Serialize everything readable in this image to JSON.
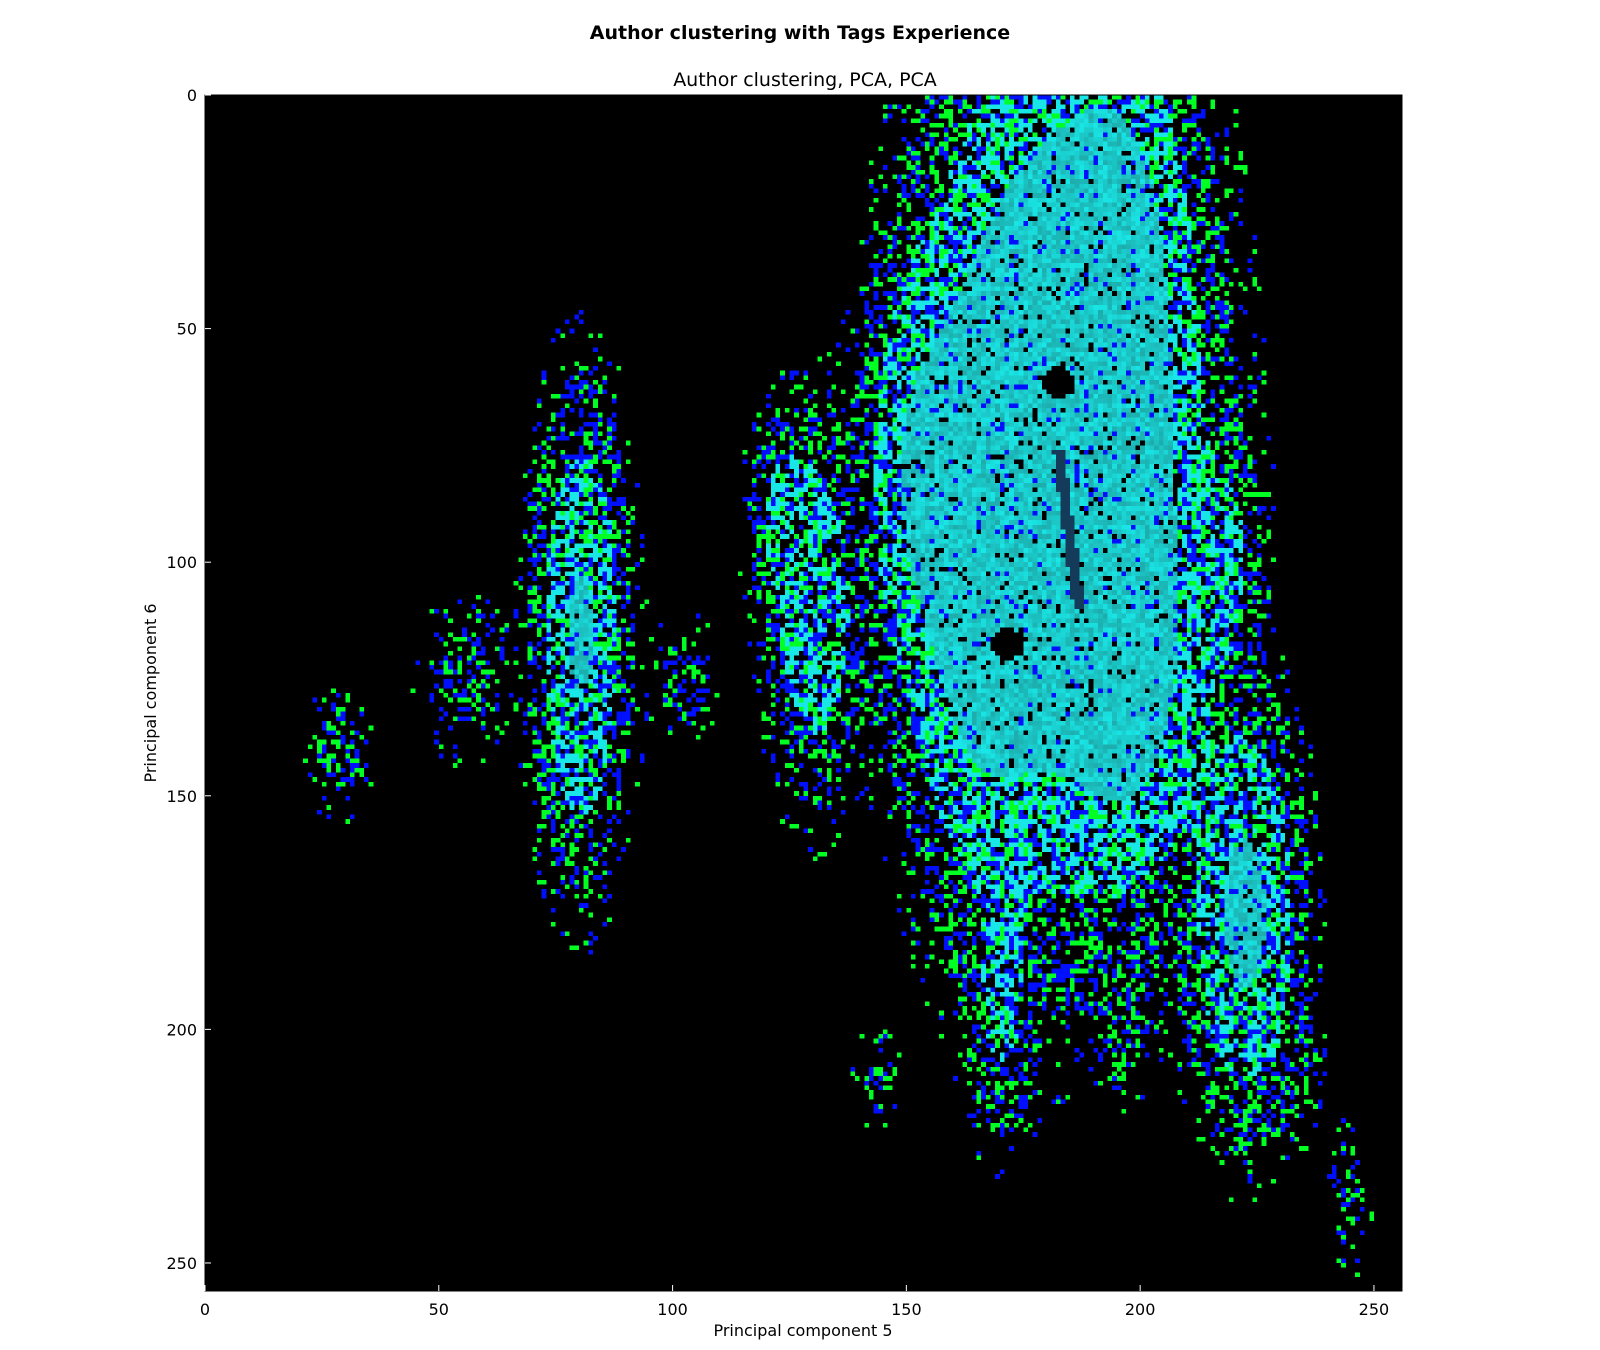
{
  "figure": {
    "suptitle": "Author clustering with Tags Experience",
    "title": "Author clustering, PCA, PCA"
  },
  "chart_data": {
    "type": "heatmap",
    "title": "Author clustering, PCA, PCA",
    "xlabel": "Principal component 5",
    "ylabel": "Principal component 6",
    "xlim": [
      0,
      256
    ],
    "ylim": [
      256,
      0
    ],
    "xticks": [
      0,
      50,
      100,
      150,
      200,
      250
    ],
    "yticks": [
      0,
      50,
      100,
      150,
      200,
      250
    ],
    "background": "#000000",
    "colors": {
      "dense": "#19e6e6",
      "medium": "#00ff22",
      "sparse": "#0010ff",
      "void": "#000000"
    },
    "clusters": [
      {
        "cx": 183,
        "cy": 75,
        "sx": 14,
        "sy": 45,
        "w": 1.0
      },
      {
        "cx": 195,
        "cy": 45,
        "sx": 7,
        "sy": 30,
        "w": 0.4
      },
      {
        "cx": 165,
        "cy": 100,
        "sx": 8,
        "sy": 35,
        "w": 0.45
      },
      {
        "cx": 198,
        "cy": 120,
        "sx": 8,
        "sy": 25,
        "w": 0.4
      },
      {
        "cx": 152,
        "cy": 80,
        "sx": 6,
        "sy": 25,
        "w": 0.3
      },
      {
        "cx": 80,
        "cy": 115,
        "sx": 5,
        "sy": 25,
        "w": 0.4
      },
      {
        "cx": 130,
        "cy": 110,
        "sx": 5,
        "sy": 20,
        "w": 0.3
      },
      {
        "cx": 123,
        "cy": 90,
        "sx": 4,
        "sy": 12,
        "w": 0.15
      },
      {
        "cx": 222,
        "cy": 175,
        "sx": 6,
        "sy": 22,
        "w": 0.45
      },
      {
        "cx": 218,
        "cy": 100,
        "sx": 4,
        "sy": 15,
        "w": 0.15
      },
      {
        "cx": 170,
        "cy": 195,
        "sx": 4,
        "sy": 15,
        "w": 0.15
      },
      {
        "cx": 196,
        "cy": 193,
        "sx": 3,
        "sy": 10,
        "w": 0.08
      },
      {
        "cx": 28,
        "cy": 140,
        "sx": 4,
        "sy": 8,
        "w": 0.06
      },
      {
        "cx": 102,
        "cy": 125,
        "sx": 4,
        "sy": 8,
        "w": 0.06
      },
      {
        "cx": 143,
        "cy": 210,
        "sx": 3,
        "sy": 6,
        "w": 0.04
      },
      {
        "cx": 233,
        "cy": 208,
        "sx": 3,
        "sy": 8,
        "w": 0.06
      },
      {
        "cx": 245,
        "cy": 235,
        "sx": 3,
        "sy": 10,
        "w": 0.04
      },
      {
        "cx": 55,
        "cy": 125,
        "sx": 6,
        "sy": 10,
        "w": 0.05
      }
    ],
    "holes": [
      {
        "x": 182,
        "y": 61,
        "r": 3.3
      },
      {
        "x": 171,
        "y": 117,
        "r": 3.3
      }
    ]
  }
}
